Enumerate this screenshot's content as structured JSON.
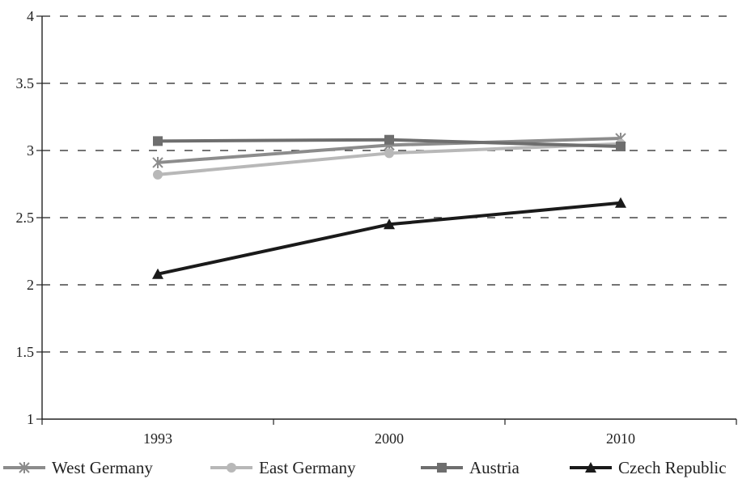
{
  "chart_data": {
    "type": "line",
    "categories": [
      "1993",
      "2000",
      "2010"
    ],
    "ylim": [
      1,
      4
    ],
    "yticks": [
      "1",
      "1.5",
      "2",
      "2.5",
      "3",
      "3.5",
      "4"
    ],
    "grid": true,
    "legend_position": "bottom",
    "series": [
      {
        "name": "West Germany",
        "values": [
          2.91,
          3.04,
          3.09
        ],
        "color": "#8c8c8c",
        "marker": "star"
      },
      {
        "name": "East Germany",
        "values": [
          2.82,
          2.98,
          3.05
        ],
        "color": "#b8b8b8",
        "marker": "circle"
      },
      {
        "name": "Austria",
        "values": [
          3.07,
          3.08,
          3.03
        ],
        "color": "#6e6e6e",
        "marker": "square"
      },
      {
        "name": "Czech Republic",
        "values": [
          2.08,
          2.45,
          2.61
        ],
        "color": "#1a1a1a",
        "marker": "triangle"
      }
    ]
  }
}
